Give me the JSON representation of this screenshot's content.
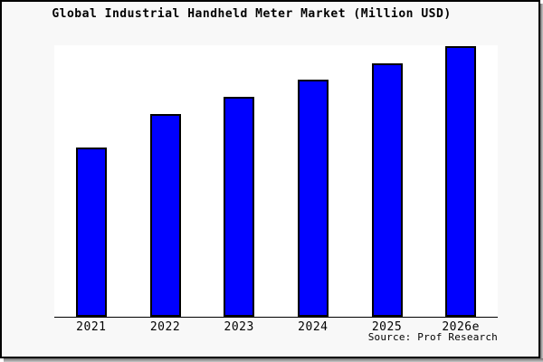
{
  "header": {
    "title": "Global Industrial Handheld Meter Market (Million USD)"
  },
  "footer": {
    "source": "Source: Prof Research"
  },
  "colors": {
    "canvas_bg": "#f8f8f8",
    "plot_bg": "#ffffff",
    "bar_fill": "#0000ff",
    "bar_border": "#000000",
    "axis": "#000000",
    "frame_border": "#000000",
    "text": "#000000"
  },
  "chart_data": {
    "type": "bar",
    "title": "Global Industrial Handheld Meter Market (Million USD)",
    "categories": [
      "2021",
      "2022",
      "2023",
      "2024",
      "2025",
      "2026e"
    ],
    "values": [
      188,
      225,
      244,
      263,
      281,
      300
    ],
    "values_note": "Y-axis is unlabeled (no ticks or scale); values are relative bar heights in arbitrary units estimated from pixel measurements",
    "xlabel": "",
    "ylabel": "",
    "ylim": [
      0,
      300
    ],
    "grid": false,
    "legend": false,
    "source": "Source: Prof Research"
  }
}
